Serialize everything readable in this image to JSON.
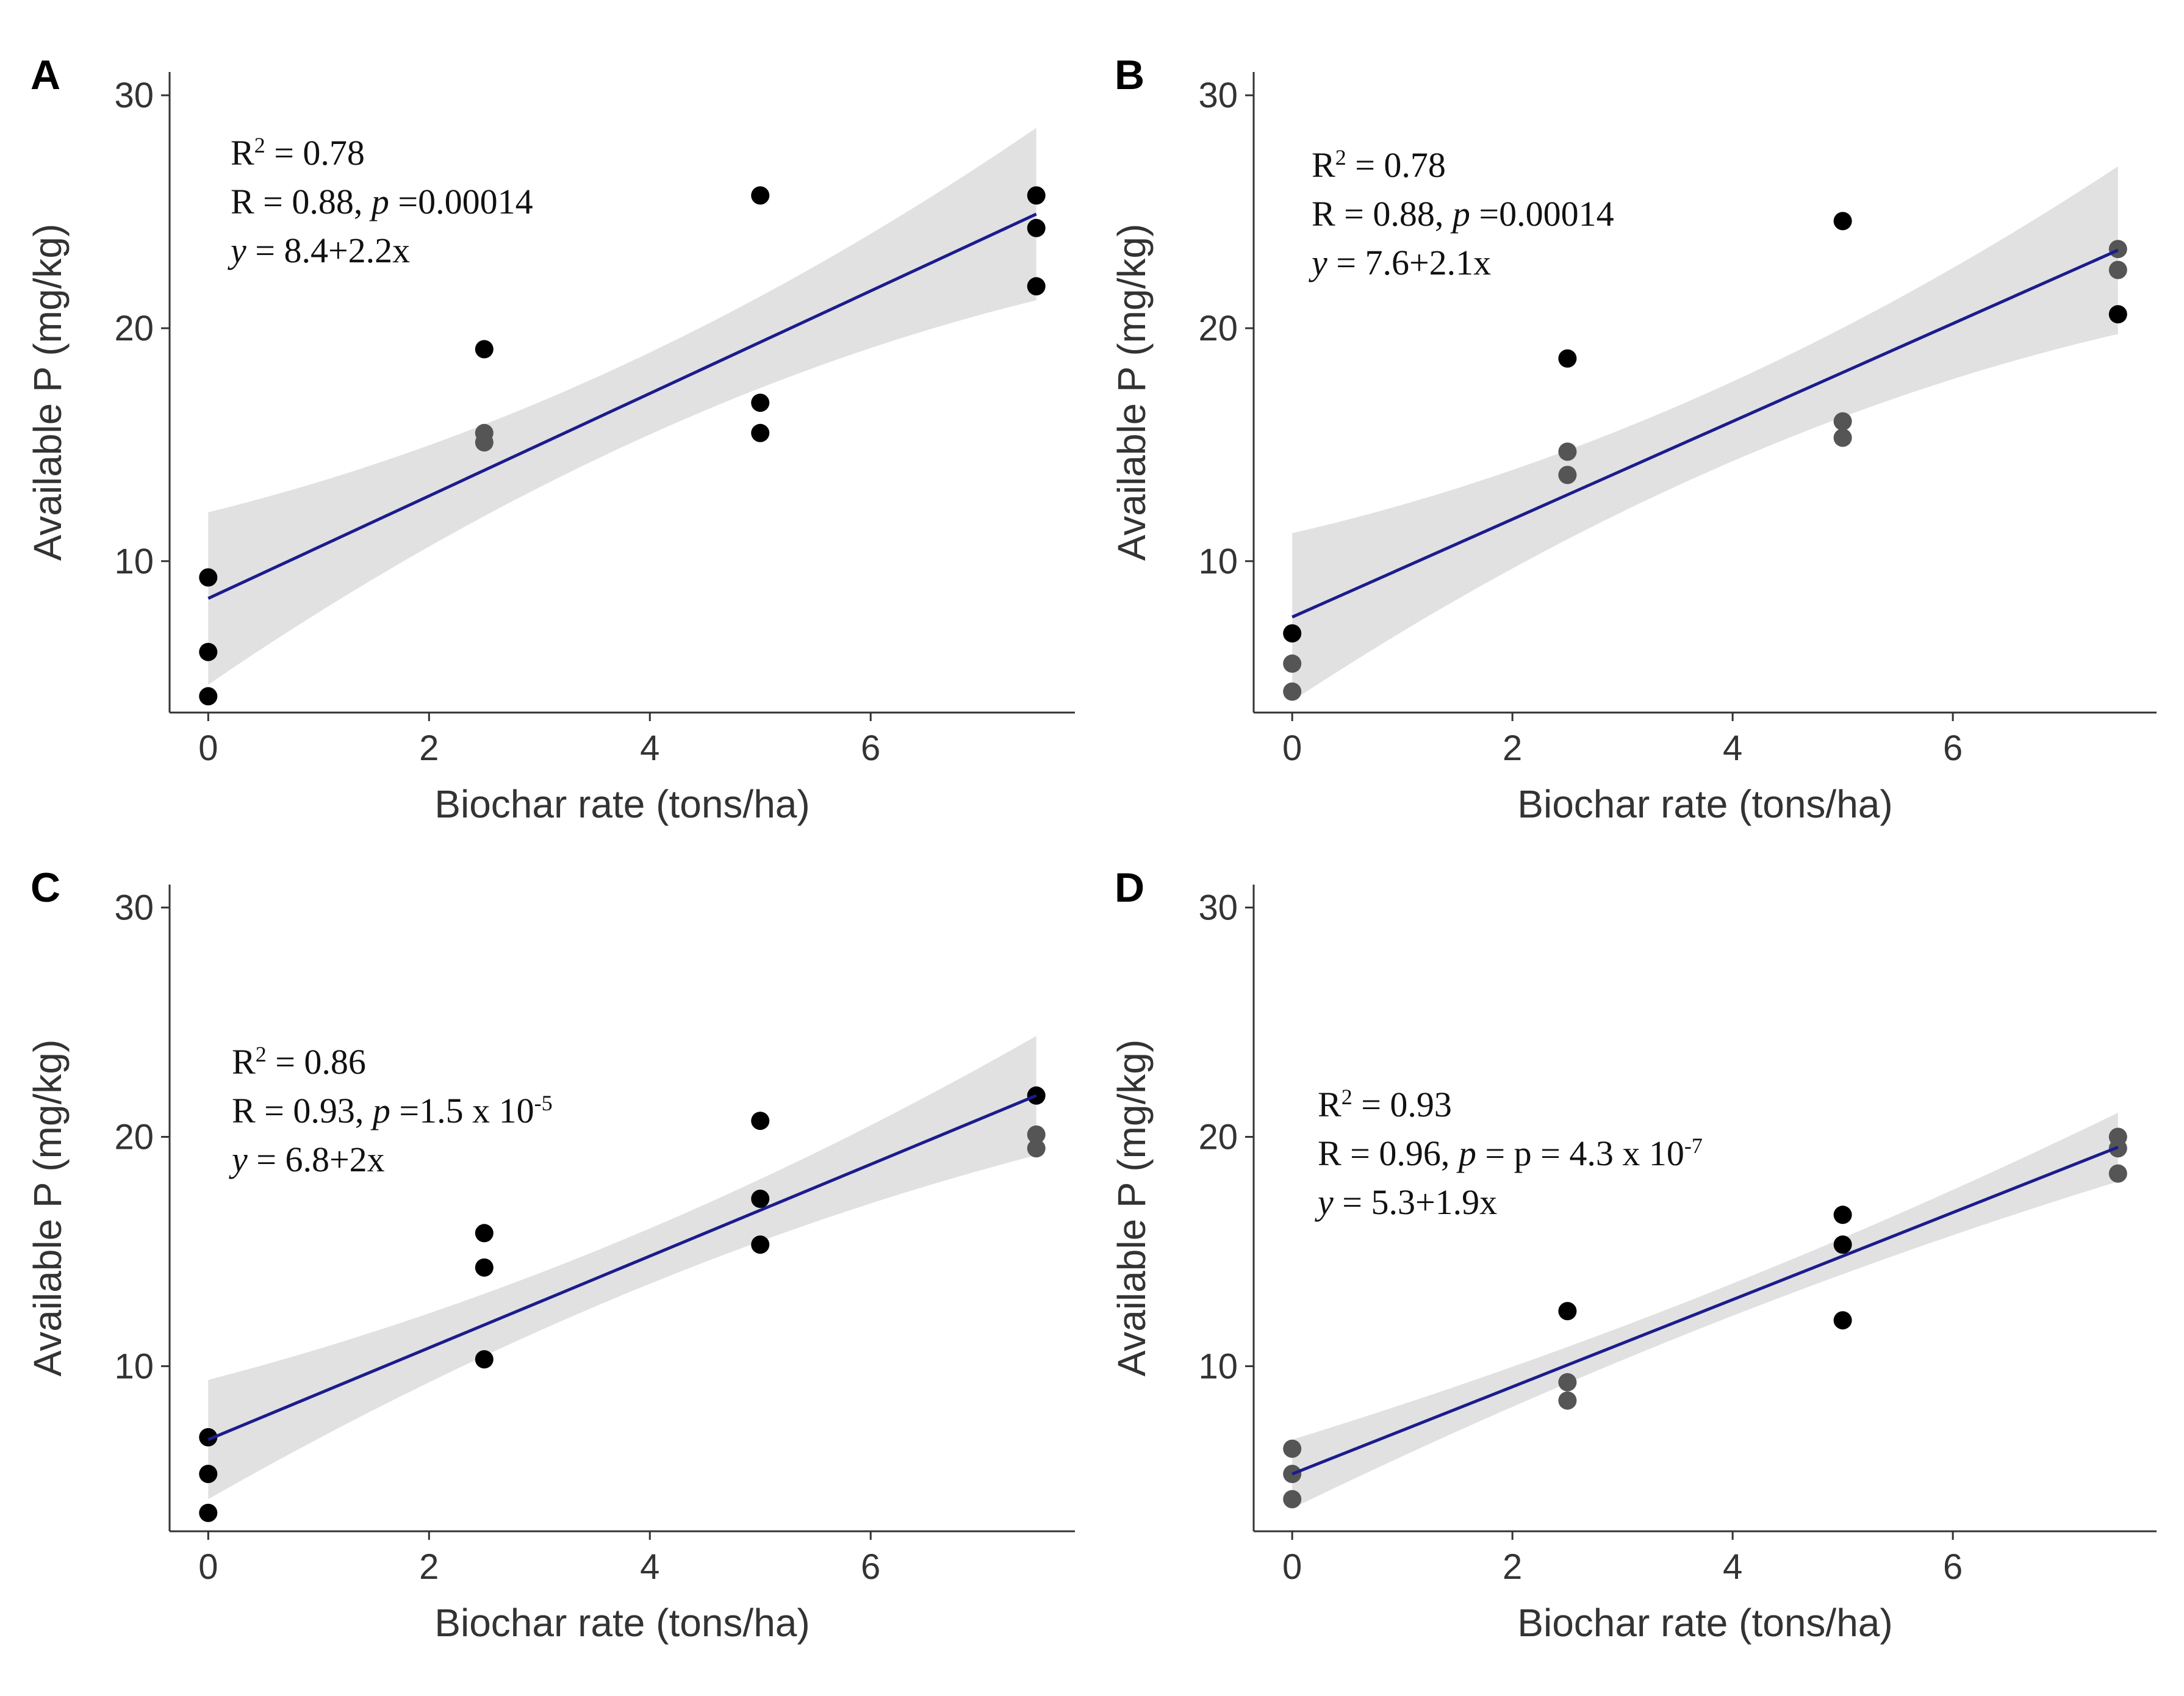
{
  "figure": {
    "colors": {
      "point": "#000000",
      "point_overlap": "#555555",
      "fit_line": "#1c1c8e",
      "ci_band": "#dcdcdc",
      "axis": "#333333",
      "text": "#333333",
      "annotation": "#111111"
    }
  },
  "chart_data": [
    {
      "panel": "A",
      "type": "scatter",
      "xlabel": "Biochar rate (tons/ha)",
      "ylabel": "Available P (mg/kg)",
      "xlim": [
        -0.35,
        7.85
      ],
      "ylim": [
        3.5,
        31
      ],
      "xticks": [
        0,
        2,
        4,
        6
      ],
      "yticks": [
        10,
        20,
        30
      ],
      "points": [
        {
          "x": 0,
          "y": 9.3
        },
        {
          "x": 0,
          "y": 6.1
        },
        {
          "x": 0,
          "y": 4.2
        },
        {
          "x": 2.5,
          "y": 19.1
        },
        {
          "x": 2.5,
          "y": 15.5
        },
        {
          "x": 2.5,
          "y": 15.1
        },
        {
          "x": 5,
          "y": 25.7
        },
        {
          "x": 5,
          "y": 16.8
        },
        {
          "x": 5,
          "y": 15.5
        },
        {
          "x": 7.5,
          "y": 25.7
        },
        {
          "x": 7.5,
          "y": 24.3
        },
        {
          "x": 7.5,
          "y": 21.8
        }
      ],
      "fit": {
        "intercept": 8.4,
        "slope": 2.2,
        "x_range": [
          0,
          7.5
        ]
      },
      "ci_half_width": {
        "at_start": 3.7,
        "at_middle": 1.75,
        "at_end": 3.7
      },
      "annotation": {
        "r2_label": "R",
        "r2_sup": "2",
        "r2_rest": " = 0.78",
        "r_label": "R = 0.88, ",
        "p_symbol": "p",
        "p_rest": " =0.00014",
        "p_sup": "",
        "y_symbol": "y",
        "eq_rest": " = 8.4+2.2x"
      }
    },
    {
      "panel": "B",
      "type": "scatter",
      "xlabel": "Biochar rate (tons/ha)",
      "ylabel": "Available P (mg/kg)",
      "xlim": [
        -0.35,
        7.85
      ],
      "ylim": [
        3.5,
        31
      ],
      "xticks": [
        0,
        2,
        4,
        6
      ],
      "yticks": [
        10,
        20,
        30
      ],
      "points": [
        {
          "x": 0,
          "y": 6.9
        },
        {
          "x": 0,
          "y": 5.6
        },
        {
          "x": 0,
          "y": 4.4
        },
        {
          "x": 2.5,
          "y": 18.7
        },
        {
          "x": 2.5,
          "y": 14.7
        },
        {
          "x": 2.5,
          "y": 13.7
        },
        {
          "x": 5,
          "y": 24.6
        },
        {
          "x": 5,
          "y": 16.0
        },
        {
          "x": 5,
          "y": 15.3
        },
        {
          "x": 7.5,
          "y": 23.4
        },
        {
          "x": 7.5,
          "y": 22.5
        },
        {
          "x": 7.5,
          "y": 20.6
        }
      ],
      "fit": {
        "intercept": 7.6,
        "slope": 2.1,
        "x_range": [
          0,
          7.5
        ]
      },
      "ci_half_width": {
        "at_start": 3.6,
        "at_middle": 1.7,
        "at_end": 3.6
      },
      "annotation": {
        "r2_label": "R",
        "r2_sup": "2",
        "r2_rest": " = 0.78",
        "r_label": "R = 0.88, ",
        "p_symbol": "p",
        "p_rest": " =0.00014",
        "p_sup": "",
        "y_symbol": "y",
        "eq_rest": " = 7.6+2.1x"
      }
    },
    {
      "panel": "C",
      "type": "scatter",
      "xlabel": "Biochar rate (tons/ha)",
      "ylabel": "Available P (mg/kg)",
      "xlim": [
        -0.35,
        7.85
      ],
      "ylim": [
        2.8,
        31
      ],
      "xticks": [
        0,
        2,
        4,
        6
      ],
      "yticks": [
        10,
        20,
        30
      ],
      "points": [
        {
          "x": 0,
          "y": 6.9
        },
        {
          "x": 0,
          "y": 5.3
        },
        {
          "x": 0,
          "y": 3.6
        },
        {
          "x": 2.5,
          "y": 15.8
        },
        {
          "x": 2.5,
          "y": 14.3
        },
        {
          "x": 2.5,
          "y": 10.3
        },
        {
          "x": 5,
          "y": 20.7
        },
        {
          "x": 5,
          "y": 17.3
        },
        {
          "x": 5,
          "y": 15.3
        },
        {
          "x": 7.5,
          "y": 21.8
        },
        {
          "x": 7.5,
          "y": 20.1
        },
        {
          "x": 7.5,
          "y": 19.5
        }
      ],
      "fit": {
        "intercept": 6.8,
        "slope": 2.0,
        "x_range": [
          0,
          7.5
        ]
      },
      "ci_half_width": {
        "at_start": 2.6,
        "at_middle": 1.2,
        "at_end": 2.6
      },
      "annotation": {
        "r2_label": "R",
        "r2_sup": "2",
        "r2_rest": " = 0.86",
        "r_label": "R = 0.93, ",
        "p_symbol": "p",
        "p_rest": " =1.5 x 10",
        "p_sup": "-5",
        "y_symbol": "y",
        "eq_rest": " = 6.8+2x"
      }
    },
    {
      "panel": "D",
      "type": "scatter",
      "xlabel": "Biochar rate (tons/ha)",
      "ylabel": "Available P (mg/kg)",
      "xlim": [
        -0.35,
        7.85
      ],
      "ylim": [
        2.8,
        31
      ],
      "xticks": [
        0,
        2,
        4,
        6
      ],
      "yticks": [
        10,
        20,
        30
      ],
      "points": [
        {
          "x": 0,
          "y": 6.4
        },
        {
          "x": 0,
          "y": 5.3
        },
        {
          "x": 0,
          "y": 4.2
        },
        {
          "x": 2.5,
          "y": 12.4
        },
        {
          "x": 2.5,
          "y": 9.3
        },
        {
          "x": 2.5,
          "y": 8.5
        },
        {
          "x": 5,
          "y": 16.6
        },
        {
          "x": 5,
          "y": 15.3
        },
        {
          "x": 5,
          "y": 12.0
        },
        {
          "x": 7.5,
          "y": 20.0
        },
        {
          "x": 7.5,
          "y": 19.5
        },
        {
          "x": 7.5,
          "y": 18.4
        }
      ],
      "fit": {
        "intercept": 5.3,
        "slope": 1.9,
        "x_range": [
          0,
          7.5
        ]
      },
      "ci_half_width": {
        "at_start": 1.5,
        "at_middle": 0.7,
        "at_end": 1.5
      },
      "annotation": {
        "r2_label": "R",
        "r2_sup": "2",
        "r2_rest": " = 0.93",
        "r_label": "R = 0.96, ",
        "p_symbol": "p",
        "p_rest": " = p = 4.3 x 10",
        "p_sup": "-7",
        "y_symbol": "y",
        "eq_rest": " = 5.3+1.9x"
      }
    }
  ]
}
